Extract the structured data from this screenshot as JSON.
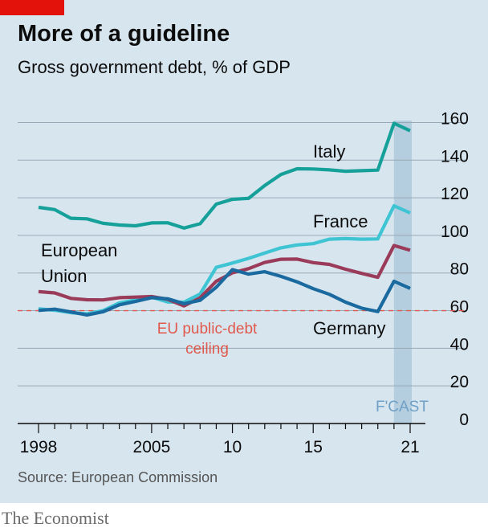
{
  "header": {
    "title": "More of a guideline",
    "subtitle": "Gross government debt, % of GDP"
  },
  "footer": {
    "source": "Source: European Commission",
    "brand": "The Economist"
  },
  "colors": {
    "background": "#d7e5ef",
    "accent": "#e3120b",
    "italy": "#15a19a",
    "france": "#3fc4d4",
    "eu": "#9b3b5a",
    "germany": "#1a6aa0",
    "ceiling": "#e0594c",
    "forecast": "#a9c6da"
  },
  "chart_data": {
    "type": "line",
    "x": [
      1998,
      1999,
      2000,
      2001,
      2002,
      2003,
      2004,
      2005,
      2006,
      2007,
      2008,
      2009,
      2010,
      2011,
      2012,
      2013,
      2014,
      2015,
      2016,
      2017,
      2018,
      2019,
      2020,
      2021
    ],
    "series": [
      {
        "name": "Italy",
        "color_key": "italy",
        "values": [
          114.9,
          113.7,
          109.1,
          108.8,
          106.4,
          105.5,
          105.1,
          106.6,
          106.7,
          103.9,
          106.2,
          116.6,
          119.2,
          119.7,
          126.5,
          132.4,
          135.4,
          135.3,
          134.8,
          134.1,
          134.4,
          134.7,
          159.6,
          155.6
        ]
      },
      {
        "name": "France",
        "color_key": "france",
        "values": [
          61.0,
          60.2,
          58.9,
          58.3,
          60.0,
          64.1,
          65.7,
          67.2,
          64.6,
          64.5,
          68.8,
          83.0,
          85.3,
          87.8,
          90.6,
          93.4,
          94.9,
          95.6,
          98.0,
          98.3,
          98.0,
          98.1,
          115.7,
          111.9
        ]
      },
      {
        "name": "European Union",
        "color_key": "eu",
        "values": [
          70.1,
          69.4,
          66.5,
          65.8,
          65.7,
          66.9,
          67.2,
          67.5,
          66.0,
          62.5,
          66.8,
          75.6,
          80.1,
          82.3,
          85.6,
          87.3,
          87.4,
          85.5,
          84.6,
          82.0,
          79.8,
          77.7,
          94.6,
          92.1
        ]
      },
      {
        "name": "Germany",
        "color_key": "germany",
        "values": [
          60.1,
          60.8,
          59.3,
          57.7,
          59.4,
          63.1,
          64.9,
          66.9,
          66.3,
          63.7,
          65.5,
          72.4,
          81.8,
          79.4,
          80.7,
          78.2,
          75.3,
          71.7,
          68.7,
          64.5,
          61.3,
          59.5,
          75.6,
          71.8
        ]
      }
    ],
    "series_labels": {
      "italy": "Italy",
      "france": "France",
      "eu_line1": "European",
      "eu_line2": "Union",
      "germany": "Germany"
    },
    "reference_line": {
      "value": 60,
      "label_line1": "EU public-debt",
      "label_line2": "ceiling"
    },
    "forecast": {
      "from": 2020,
      "to": 2021,
      "label": "F'CAST"
    },
    "x_ticks": [
      {
        "value": 1998,
        "label": "1998"
      },
      {
        "value": 2005,
        "label": "2005"
      },
      {
        "value": 2010,
        "label": "10"
      },
      {
        "value": 2015,
        "label": "15"
      },
      {
        "value": 2021,
        "label": "21"
      }
    ],
    "y_ticks": [
      0,
      20,
      40,
      60,
      80,
      100,
      120,
      140,
      160
    ],
    "ylim": [
      0,
      165
    ],
    "y_axis_side": "right",
    "grid": true
  }
}
